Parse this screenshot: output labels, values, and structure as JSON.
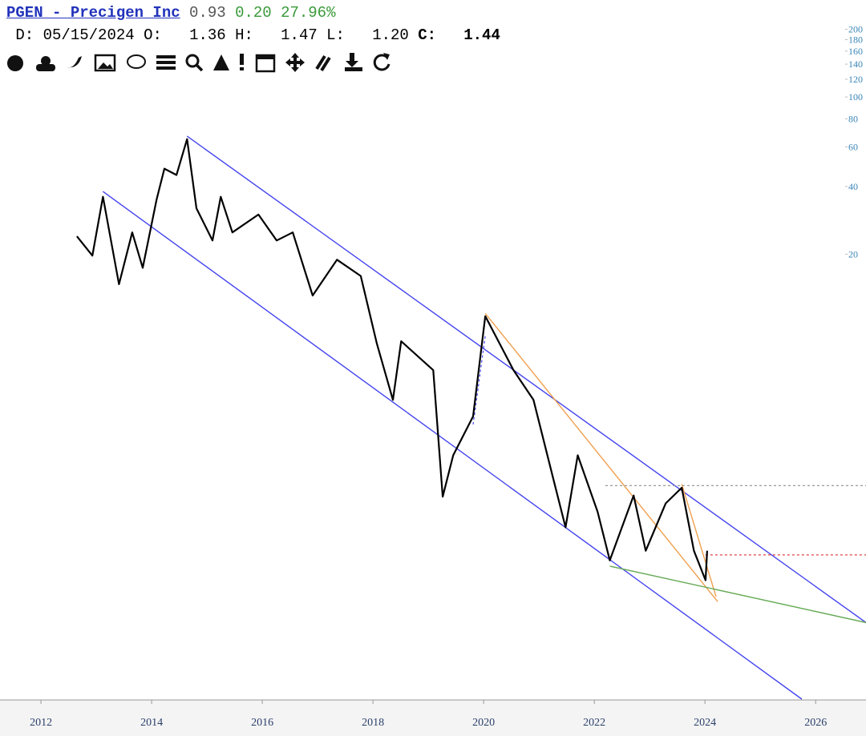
{
  "header": {
    "symbol_link": "PGEN - Precigen Inc",
    "last": "0.93",
    "change": "0.20",
    "change_pct": "27.96%",
    "ohlc": [
      {
        "label": "D:",
        "value": "05/15/2024"
      },
      {
        "label": "O:",
        "value": "1.36"
      },
      {
        "label": "H:",
        "value": "1.47"
      },
      {
        "label": "L:",
        "value": "1.20"
      },
      {
        "label": "C:",
        "value": "1.44"
      }
    ]
  },
  "chart_data": {
    "type": "line",
    "log_scale": true,
    "x": [
      2012.65,
      2012.93,
      2013.12,
      2013.41,
      2013.65,
      2013.84,
      2014.09,
      2014.23,
      2014.45,
      2014.64,
      2014.81,
      2015.1,
      2015.25,
      2015.46,
      2015.93,
      2016.26,
      2016.55,
      2016.91,
      2017.35,
      2017.78,
      2018.07,
      2018.36,
      2018.51,
      2019.09,
      2019.26,
      2019.45,
      2019.81,
      2020.03,
      2020.54,
      2020.9,
      2021.26,
      2021.48,
      2021.7,
      2022.06,
      2022.28,
      2022.71,
      2022.93,
      2023.29,
      2023.58,
      2023.8,
      2024.01,
      2024.04
    ],
    "series": [
      {
        "color": "#000000",
        "values": [
          24,
          19.7,
          36,
          14.7,
          25,
          17.4,
          35,
          48,
          45,
          65,
          32,
          23,
          36,
          25,
          30,
          23,
          25,
          13.1,
          18.9,
          16,
          8.0,
          4.5,
          8.2,
          6.1,
          1.67,
          2.55,
          3.8,
          10.6,
          6.1,
          4.5,
          2.0,
          1.22,
          2.55,
          1.43,
          0.87,
          1.69,
          0.96,
          1.56,
          1.83,
          0.96,
          0.71,
          0.96
        ]
      }
    ],
    "trendlines": [
      {
        "color": "#4444ee",
        "dash": false,
        "x": [
          2014.64,
          2026.91
        ],
        "y": [
          67,
          0.46
        ]
      },
      {
        "color": "#4444ee",
        "dash": false,
        "x": [
          2013.12,
          2025.75
        ],
        "y": [
          38,
          0.21
        ]
      },
      {
        "color": "#f0a050",
        "dash": false,
        "x": [
          2020.03,
          2024.23
        ],
        "y": [
          10.9,
          0.57
        ]
      },
      {
        "color": "#f0a050",
        "dash": false,
        "x": [
          2023.58,
          2024.2
        ],
        "y": [
          1.9,
          0.6
        ]
      },
      {
        "color": "#66aa55",
        "dash": false,
        "x": [
          2022.28,
          2026.91
        ],
        "y": [
          0.82,
          0.46
        ]
      },
      {
        "color": "#999999",
        "dash": true,
        "x": [
          2022.2,
          2026.91
        ],
        "y": [
          1.87,
          1.87
        ]
      },
      {
        "color": "#dd4444",
        "dash": true,
        "x": [
          2024.01,
          2026.91
        ],
        "y": [
          0.92,
          0.92
        ]
      },
      {
        "color": "#4444ee",
        "dash": true,
        "x": [
          2019.81,
          2020.03
        ],
        "y": [
          3.5,
          8.7
        ]
      }
    ],
    "xlim": [
      2011.26,
      2026.91
    ],
    "xticks": [
      2012,
      2014,
      2016,
      2018,
      2020,
      2022,
      2024,
      2026
    ],
    "ylim": [
      0.21,
      270
    ],
    "yticks": [
      200,
      180,
      160,
      140,
      120,
      100,
      80,
      60,
      40,
      20
    ]
  }
}
